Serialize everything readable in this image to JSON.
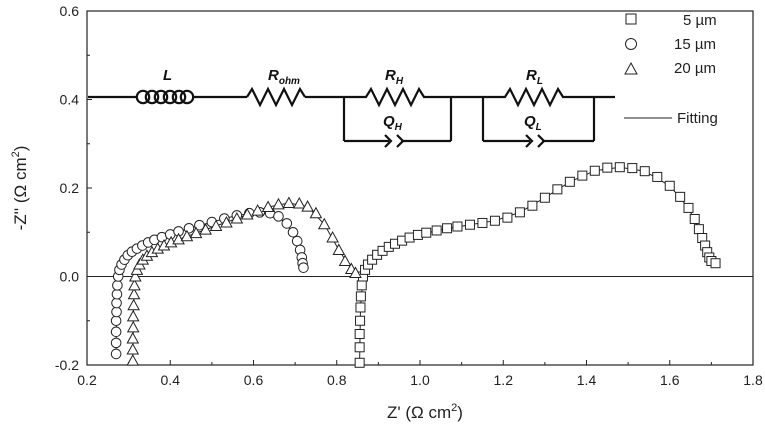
{
  "chart_data": {
    "type": "scatter",
    "xlabel": "Z' (Ω cm",
    "xlabel_sup": "2",
    "xlabel_tail": ")",
    "ylabel": "-Z'' (Ω cm",
    "ylabel_sup": "2",
    "ylabel_tail": ")",
    "xlim": [
      0.2,
      1.8
    ],
    "ylim": [
      -0.2,
      0.6
    ],
    "x_ticks": [
      "0.2",
      "0.4",
      "0.6",
      "0.8",
      "1.0",
      "1.2",
      "1.4",
      "1.6",
      "1.8"
    ],
    "y_ticks": [
      "-0.2",
      "0.0",
      "0.2",
      "0.4",
      "0.6"
    ],
    "zero_line": true,
    "grid": false,
    "legend_position": "top-right",
    "legend": [
      "5 µm",
      "15 µm",
      "20 µm",
      "Fitting"
    ],
    "series": [
      {
        "name": "5 µm",
        "marker": "square",
        "points": [
          [
            0.855,
            -0.195
          ],
          [
            0.855,
            -0.16
          ],
          [
            0.855,
            -0.13
          ],
          [
            0.856,
            -0.1
          ],
          [
            0.857,
            -0.07
          ],
          [
            0.858,
            -0.045
          ],
          [
            0.86,
            -0.02
          ],
          [
            0.863,
            0.0
          ],
          [
            0.868,
            0.015
          ],
          [
            0.875,
            0.027
          ],
          [
            0.885,
            0.038
          ],
          [
            0.897,
            0.049
          ],
          [
            0.91,
            0.058
          ],
          [
            0.925,
            0.067
          ],
          [
            0.94,
            0.074
          ],
          [
            0.957,
            0.081
          ],
          [
            0.975,
            0.088
          ],
          [
            0.995,
            0.094
          ],
          [
            1.015,
            0.099
          ],
          [
            1.04,
            0.104
          ],
          [
            1.065,
            0.109
          ],
          [
            1.09,
            0.113
          ],
          [
            1.12,
            0.117
          ],
          [
            1.15,
            0.121
          ],
          [
            1.18,
            0.126
          ],
          [
            1.21,
            0.133
          ],
          [
            1.24,
            0.145
          ],
          [
            1.27,
            0.16
          ],
          [
            1.3,
            0.178
          ],
          [
            1.33,
            0.197
          ],
          [
            1.36,
            0.214
          ],
          [
            1.39,
            0.228
          ],
          [
            1.42,
            0.239
          ],
          [
            1.45,
            0.246
          ],
          [
            1.48,
            0.247
          ],
          [
            1.51,
            0.245
          ],
          [
            1.54,
            0.238
          ],
          [
            1.57,
            0.225
          ],
          [
            1.6,
            0.205
          ],
          [
            1.625,
            0.18
          ],
          [
            1.645,
            0.155
          ],
          [
            1.66,
            0.13
          ],
          [
            1.67,
            0.107
          ],
          [
            1.678,
            0.087
          ],
          [
            1.685,
            0.07
          ],
          [
            1.69,
            0.055
          ],
          [
            1.695,
            0.043
          ],
          [
            1.7,
            0.035
          ],
          [
            1.71,
            0.03
          ]
        ]
      },
      {
        "name": "15 µm",
        "marker": "circle",
        "points": [
          [
            0.27,
            -0.175
          ],
          [
            0.27,
            -0.15
          ],
          [
            0.27,
            -0.125
          ],
          [
            0.27,
            -0.1
          ],
          [
            0.271,
            -0.08
          ],
          [
            0.271,
            -0.06
          ],
          [
            0.272,
            -0.04
          ],
          [
            0.273,
            -0.02
          ],
          [
            0.275,
            0.0
          ],
          [
            0.278,
            0.015
          ],
          [
            0.283,
            0.027
          ],
          [
            0.29,
            0.038
          ],
          [
            0.298,
            0.048
          ],
          [
            0.308,
            0.056
          ],
          [
            0.32,
            0.063
          ],
          [
            0.333,
            0.07
          ],
          [
            0.347,
            0.077
          ],
          [
            0.362,
            0.083
          ],
          [
            0.38,
            0.089
          ],
          [
            0.4,
            0.095
          ],
          [
            0.42,
            0.102
          ],
          [
            0.445,
            0.109
          ],
          [
            0.47,
            0.116
          ],
          [
            0.5,
            0.123
          ],
          [
            0.53,
            0.131
          ],
          [
            0.56,
            0.138
          ],
          [
            0.59,
            0.143
          ],
          [
            0.615,
            0.145
          ],
          [
            0.64,
            0.143
          ],
          [
            0.66,
            0.136
          ],
          [
            0.68,
            0.12
          ],
          [
            0.695,
            0.1
          ],
          [
            0.705,
            0.08
          ],
          [
            0.712,
            0.06
          ],
          [
            0.716,
            0.043
          ],
          [
            0.718,
            0.03
          ],
          [
            0.72,
            0.02
          ]
        ]
      },
      {
        "name": "20 µm",
        "marker": "triangle",
        "points": [
          [
            0.31,
            -0.19
          ],
          [
            0.31,
            -0.165
          ],
          [
            0.31,
            -0.14
          ],
          [
            0.311,
            -0.115
          ],
          [
            0.311,
            -0.09
          ],
          [
            0.312,
            -0.065
          ],
          [
            0.313,
            -0.04
          ],
          [
            0.314,
            -0.02
          ],
          [
            0.316,
            0.0
          ],
          [
            0.32,
            0.015
          ],
          [
            0.326,
            0.027
          ],
          [
            0.334,
            0.038
          ],
          [
            0.344,
            0.047
          ],
          [
            0.356,
            0.055
          ],
          [
            0.37,
            0.063
          ],
          [
            0.385,
            0.07
          ],
          [
            0.402,
            0.077
          ],
          [
            0.42,
            0.084
          ],
          [
            0.44,
            0.091
          ],
          [
            0.462,
            0.098
          ],
          [
            0.485,
            0.106
          ],
          [
            0.51,
            0.114
          ],
          [
            0.535,
            0.122
          ],
          [
            0.56,
            0.131
          ],
          [
            0.585,
            0.14
          ],
          [
            0.61,
            0.149
          ],
          [
            0.635,
            0.157
          ],
          [
            0.66,
            0.163
          ],
          [
            0.685,
            0.166
          ],
          [
            0.71,
            0.165
          ],
          [
            0.73,
            0.158
          ],
          [
            0.75,
            0.143
          ],
          [
            0.77,
            0.118
          ],
          [
            0.79,
            0.088
          ],
          [
            0.805,
            0.06
          ],
          [
            0.82,
            0.035
          ],
          [
            0.835,
            0.017
          ],
          [
            0.845,
            0.008
          ]
        ]
      },
      {
        "name": "Fitting",
        "marker": "line",
        "curves": [
          [
            [
              0.855,
              -0.195
            ],
            [
              0.857,
              -0.07
            ],
            [
              0.863,
              0.0
            ],
            [
              0.885,
              0.038
            ],
            [
              0.925,
              0.067
            ],
            [
              0.975,
              0.088
            ],
            [
              1.04,
              0.104
            ],
            [
              1.12,
              0.117
            ],
            [
              1.18,
              0.126
            ],
            [
              1.24,
              0.145
            ],
            [
              1.3,
              0.178
            ],
            [
              1.36,
              0.214
            ],
            [
              1.42,
              0.239
            ],
            [
              1.48,
              0.247
            ],
            [
              1.54,
              0.238
            ],
            [
              1.6,
              0.205
            ],
            [
              1.645,
              0.155
            ],
            [
              1.67,
              0.107
            ],
            [
              1.685,
              0.07
            ],
            [
              1.695,
              0.043
            ],
            [
              1.7,
              0.03
            ]
          ],
          [
            [
              0.27,
              -0.175
            ],
            [
              0.271,
              -0.06
            ],
            [
              0.275,
              0.0
            ],
            [
              0.29,
              0.038
            ],
            [
              0.32,
              0.063
            ],
            [
              0.362,
              0.083
            ],
            [
              0.42,
              0.102
            ],
            [
              0.5,
              0.123
            ],
            [
              0.56,
              0.138
            ],
            [
              0.615,
              0.145
            ],
            [
              0.66,
              0.136
            ],
            [
              0.695,
              0.1
            ],
            [
              0.712,
              0.06
            ],
            [
              0.72,
              0.02
            ]
          ],
          [
            [
              0.31,
              -0.19
            ],
            [
              0.312,
              -0.065
            ],
            [
              0.316,
              0.0
            ],
            [
              0.334,
              0.038
            ],
            [
              0.37,
              0.063
            ],
            [
              0.42,
              0.084
            ],
            [
              0.485,
              0.106
            ],
            [
              0.56,
              0.131
            ],
            [
              0.635,
              0.157
            ],
            [
              0.685,
              0.166
            ],
            [
              0.73,
              0.158
            ],
            [
              0.77,
              0.118
            ],
            [
              0.805,
              0.06
            ],
            [
              0.835,
              0.017
            ],
            [
              0.845,
              0.008
            ]
          ]
        ]
      }
    ]
  },
  "circuit": {
    "L": "L",
    "R_ohm": "R",
    "R_ohm_sub": "ohm",
    "R_H": "R",
    "R_H_sub": "H",
    "Q_H": "Q",
    "Q_H_sub": "H",
    "R_L": "R",
    "R_L_sub": "L",
    "Q_L": "Q",
    "Q_L_sub": "L"
  }
}
